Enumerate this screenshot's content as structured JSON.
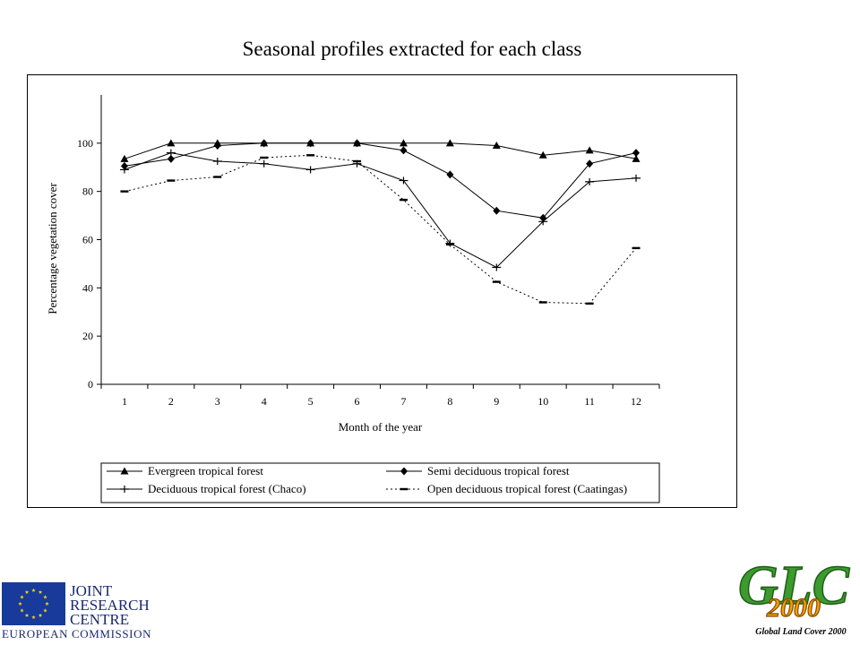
{
  "title": "Seasonal profiles extracted for each class",
  "logos": {
    "jrc_line1": "JOINT",
    "jrc_line2": "RESEARCH",
    "jrc_line3": "CENTRE",
    "jrc_line4": "EUROPEAN COMMISSION",
    "glc_big": "GLC",
    "glc_year": "2000",
    "glc_caption": "Global Land Cover 2000",
    "eu_flag_icon": "eu-flag-icon"
  },
  "chart_data": {
    "type": "line",
    "xlabel": "Month of the year",
    "ylabel": "Percentage vegetation cover",
    "categories": [
      "1",
      "2",
      "3",
      "4",
      "5",
      "6",
      "7",
      "8",
      "9",
      "10",
      "11",
      "12"
    ],
    "ylim": [
      0,
      120
    ],
    "yticks": [
      0,
      20,
      40,
      60,
      80,
      100
    ],
    "grid": false,
    "legend_placement": "bottom",
    "series": [
      {
        "name": "Evergreen tropical forest",
        "marker": "triangle",
        "dash": "solid",
        "values": [
          93.5,
          100,
          100,
          100,
          100,
          100,
          100,
          100,
          99,
          95,
          97,
          93.5
        ]
      },
      {
        "name": "Semi deciduous tropical forest",
        "marker": "diamond",
        "dash": "solid",
        "values": [
          90.5,
          93.5,
          99,
          100,
          100,
          100,
          97,
          87,
          72,
          69,
          91.5,
          96
        ]
      },
      {
        "name": "Deciduous tropical forest (Chaco)",
        "marker": "plus",
        "dash": "solid",
        "values": [
          89,
          96,
          92.5,
          91.5,
          89,
          91.5,
          84.5,
          58.5,
          48.5,
          67.5,
          84,
          85.5
        ]
      },
      {
        "name": "Open deciduous tropical forest (Caatingas)",
        "marker": "dash",
        "dash": "dotted",
        "values": [
          80,
          84.5,
          86,
          94,
          95,
          92.5,
          76.5,
          58,
          42.5,
          34,
          33.5,
          56.5
        ]
      }
    ]
  }
}
